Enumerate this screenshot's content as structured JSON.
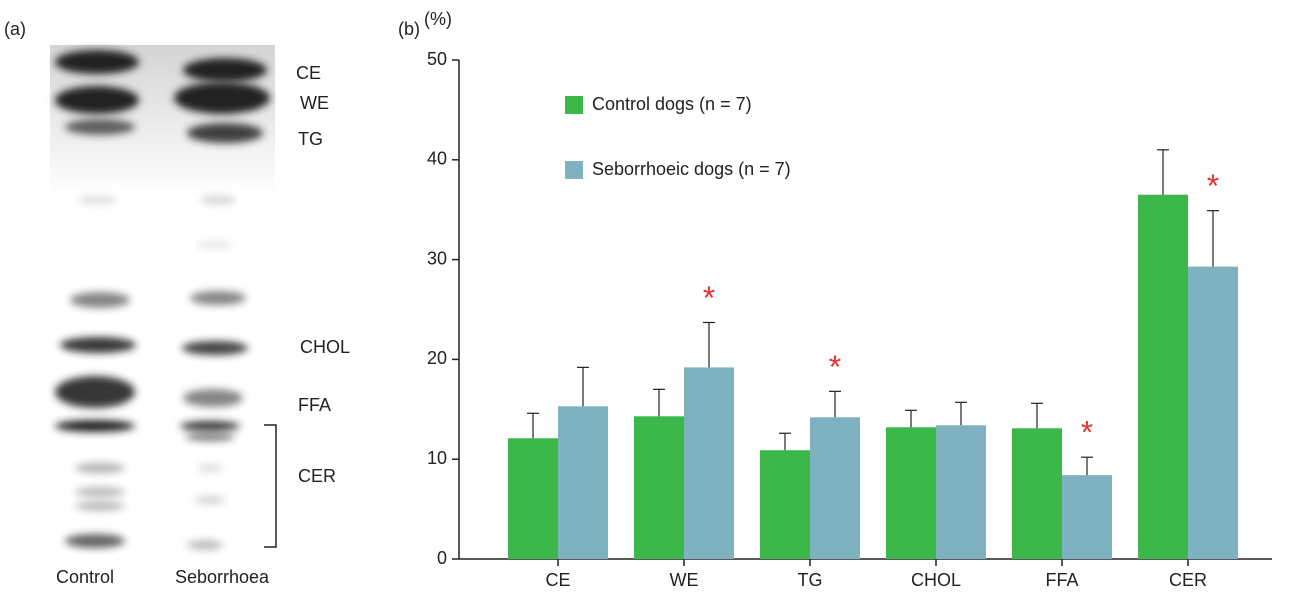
{
  "gel": {
    "panel_label": "(a)",
    "lanes": [
      "Control",
      "Seborrhoea"
    ],
    "bands": [
      "CE",
      "WE",
      "TG",
      "CHOL",
      "FFA",
      "CER"
    ]
  },
  "chart_data": {
    "type": "bar",
    "panel_label": "(b)",
    "y_label": "(%)",
    "categories": [
      "CE",
      "WE",
      "TG",
      "CHOL",
      "FFA",
      "CER"
    ],
    "series": [
      {
        "name": "Control dogs (n = 7)",
        "color": "#3cb84a",
        "values": [
          12.1,
          14.3,
          10.9,
          13.2,
          13.1,
          36.5
        ],
        "errors": [
          2.5,
          2.7,
          1.7,
          1.7,
          2.5,
          4.5
        ]
      },
      {
        "name": "Seborrhoeic dogs (n = 7)",
        "color": "#7fb2c0",
        "values": [
          15.3,
          19.2,
          14.2,
          13.4,
          8.4,
          29.3
        ],
        "errors": [
          3.9,
          4.5,
          2.6,
          2.3,
          1.8,
          5.6
        ],
        "significance": [
          null,
          "*",
          "*",
          null,
          "*",
          "*"
        ]
      }
    ],
    "ylim": [
      0,
      50
    ],
    "yticks": [
      0,
      10,
      20,
      30,
      40,
      50
    ],
    "grid": false
  }
}
